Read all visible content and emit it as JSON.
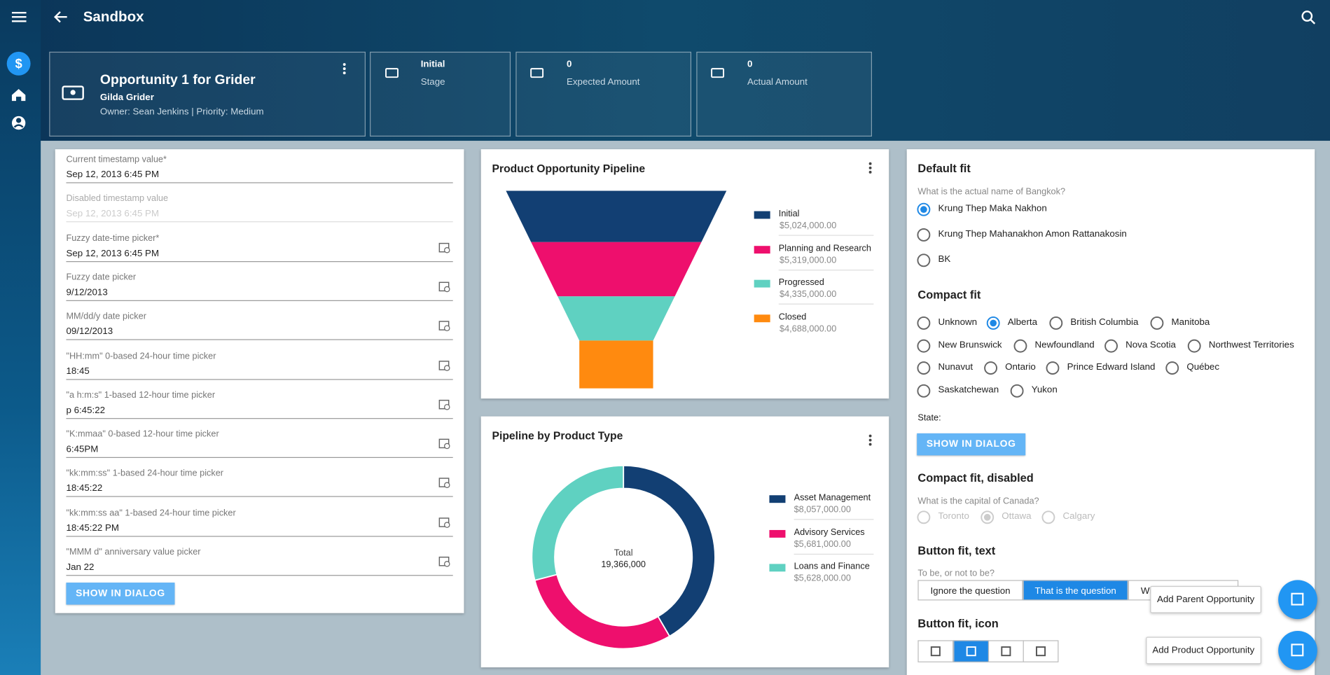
{
  "header": {
    "title": "Sandbox"
  },
  "summary": {
    "name": "Opportunity 1 for Grider",
    "account": "Gilda Grider",
    "meta": "Owner: Sean Jenkins | Priority: Medium",
    "stats": [
      {
        "value": "Initial",
        "label": "Stage"
      },
      {
        "value": "0",
        "label": "Expected Amount"
      },
      {
        "value": "0",
        "label": "Actual Amount"
      }
    ]
  },
  "form": {
    "fields": [
      {
        "label": "Current timestamp value*",
        "value": "Sep 12, 2013 6:45 PM"
      },
      {
        "label": "Disabled timestamp value",
        "value": "Sep 12, 2013 6:45 PM"
      },
      {
        "label": "Fuzzy date-time picker*",
        "value": "Sep 12, 2013 6:45 PM"
      },
      {
        "label": "Fuzzy date picker",
        "value": "9/12/2013"
      },
      {
        "label": "MM/dd/y date picker",
        "value": "09/12/2013"
      },
      {
        "label": "\"HH:mm\" 0-based 24-hour time picker",
        "value": "18:45"
      },
      {
        "label": "\"a h:m:s\" 1-based 12-hour time picker",
        "value": "p 6:45:22"
      },
      {
        "label": "\"K:mmaa\" 0-based 12-hour time picker",
        "value": "6:45PM"
      },
      {
        "label": "\"kk:mm:ss\" 1-based 24-hour time picker",
        "value": "18:45:22"
      },
      {
        "label": "\"kk:mm:ss aa\" 1-based 24-hour time picker",
        "value": "18:45:22 PM"
      },
      {
        "label": "\"MMM d\" anniversary value picker",
        "value": "Jan 22"
      }
    ],
    "button": "SHOW IN DIALOG"
  },
  "funnel": {
    "type": "funnel",
    "title": "Product Opportunity Pipeline",
    "categories": [
      "Initial",
      "Planning and Research",
      "Progressed",
      "Closed"
    ],
    "values": [
      5024000,
      5319000,
      4335000,
      4688000
    ],
    "value_labels": [
      "$5,024,000.00",
      "$5,319,000.00",
      "$4,335,000.00",
      "$4,688,000.00"
    ],
    "colors": [
      "#123f73",
      "#ee0f6d",
      "#5fd1c1",
      "#ff8a0f"
    ]
  },
  "donut": {
    "type": "donut",
    "title": "Pipeline by Product Type",
    "categories": [
      "Asset Management",
      "Advisory Services",
      "Loans and Finance"
    ],
    "values": [
      8057000,
      5681000,
      5628000
    ],
    "value_labels": [
      "$8,057,000.00",
      "$5,681,000.00",
      "$5,628,000.00"
    ],
    "colors": [
      "#123f73",
      "#ee0f6d",
      "#5fd1c1"
    ],
    "total": {
      "label": "Total",
      "value": 19366000,
      "value_label": "19,366,000"
    }
  },
  "choices": {
    "default_fit": {
      "title": "Default fit",
      "question": "What is the actual name of Bangkok?",
      "options": [
        "Krung Thep Maka Nakhon",
        "Krung Thep Mahanakhon Amon Rattanakosin",
        "BK"
      ],
      "selected": 0
    },
    "compact_fit": {
      "title": "Compact fit",
      "options": [
        "Unknown",
        "Alberta",
        "British Columbia",
        "Manitoba",
        "New Brunswick",
        "Newfoundland",
        "Nova Scotia",
        "Northwest Territories",
        "Nunavut",
        "Ontario",
        "Prince Edward Island",
        "Québec",
        "Saskatchewan",
        "Yukon"
      ],
      "selected": 1,
      "state_label": "State:",
      "button": "SHOW IN DIALOG"
    },
    "compact_disabled": {
      "title": "Compact fit, disabled",
      "question": "What is the capital of Canada?",
      "options": [
        "Toronto",
        "Ottawa",
        "Calgary"
      ],
      "selected": 1
    },
    "button_text": {
      "title": "Button fit, text",
      "question": "To be, or not to be?",
      "options": [
        "Ignore the question",
        "That is the question",
        "Wh"
      ],
      "selected": 1
    },
    "button_icon": {
      "title": "Button fit, icon",
      "selected": 1
    }
  },
  "fabs": [
    "Add Parent Opportunity",
    "Add Product Opportunity"
  ]
}
